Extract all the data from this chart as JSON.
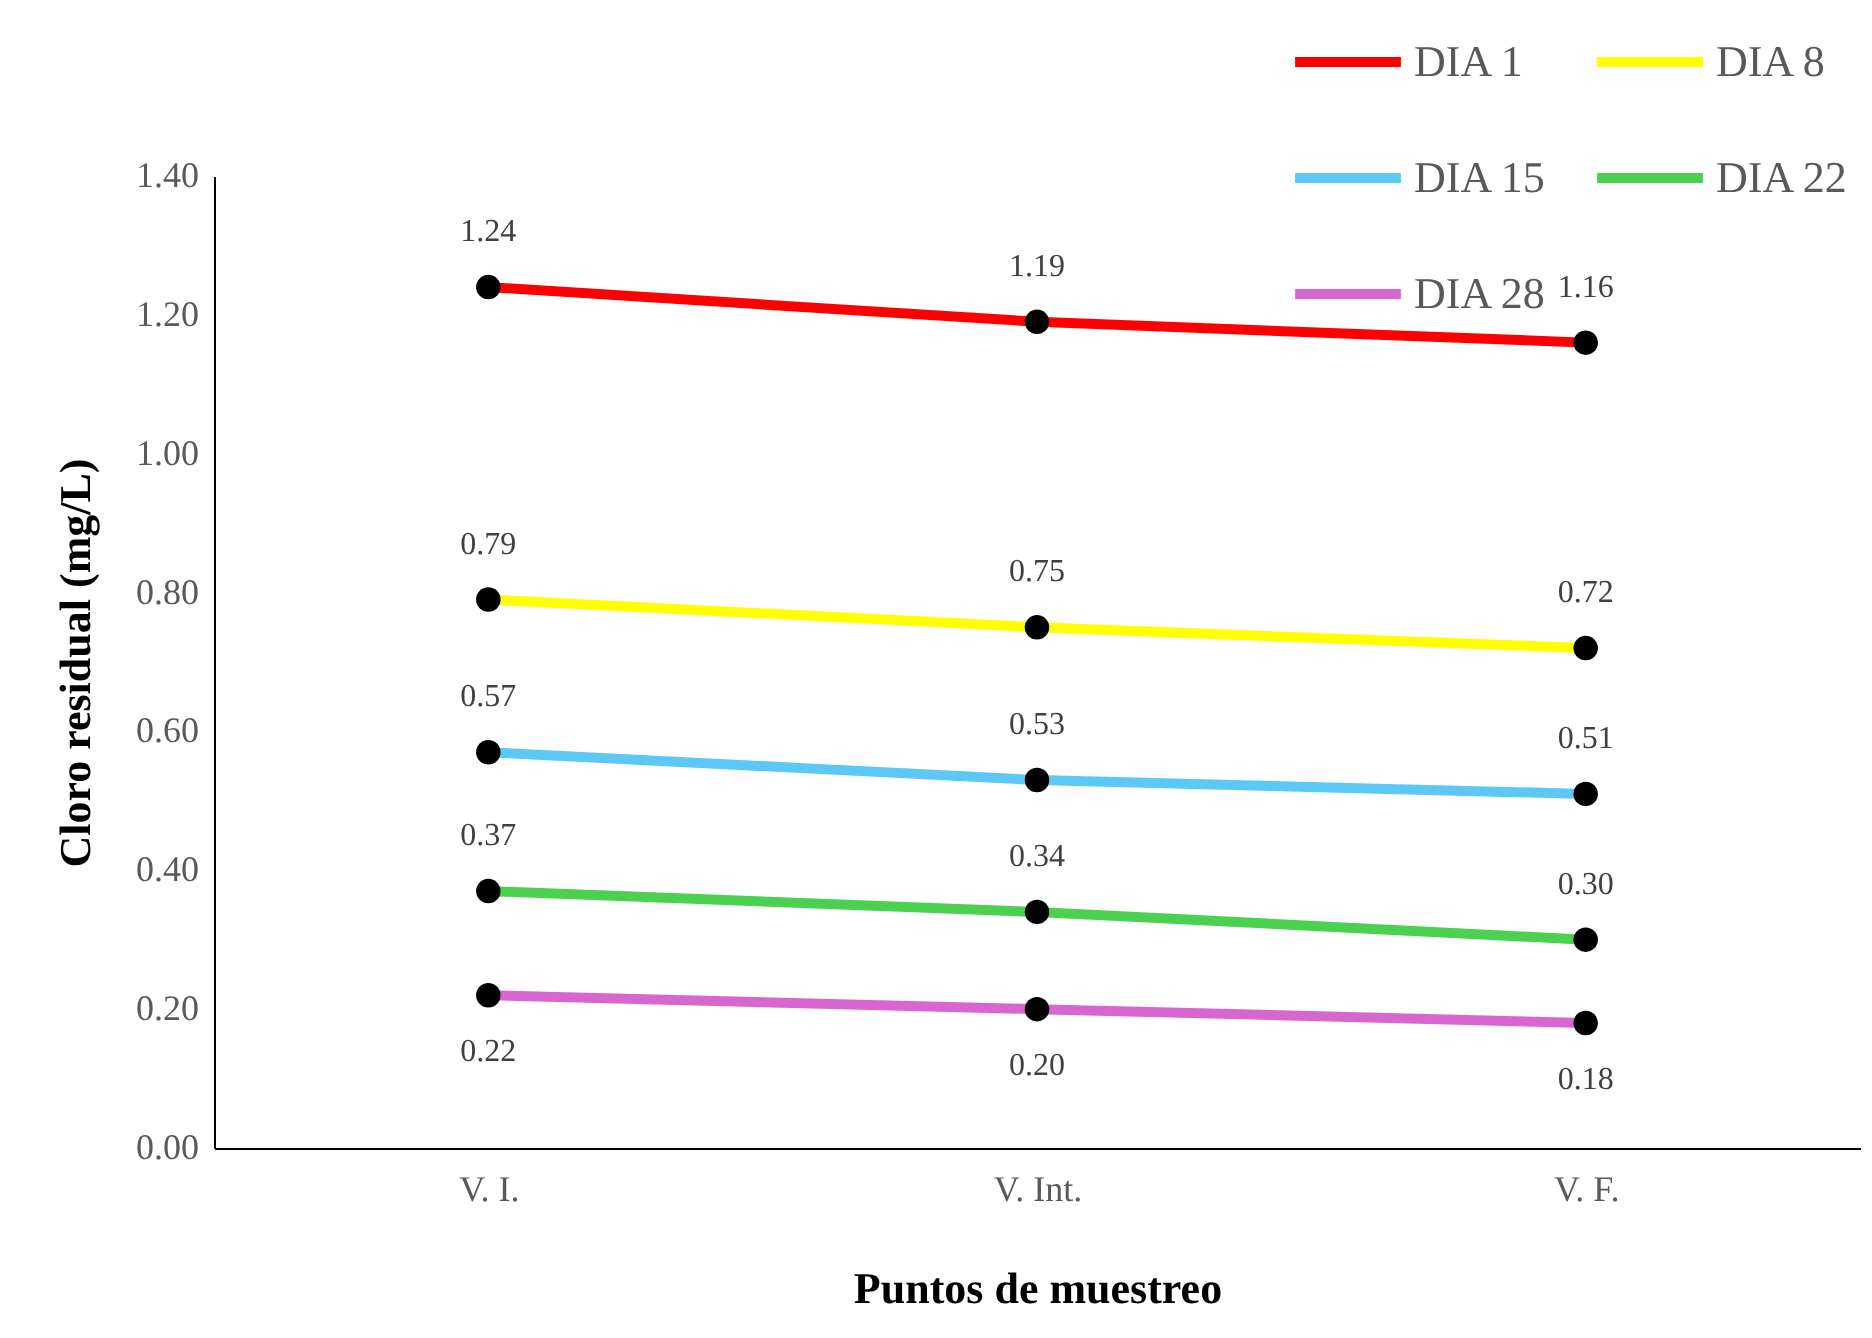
{
  "chart_data": {
    "type": "line",
    "xlabel": "Puntos de muestreo",
    "ylabel": "Cloro residual (mg/L)",
    "categories": [
      "V. I.",
      "V. Int.",
      "V. F."
    ],
    "series": [
      {
        "name": "DIA 1",
        "color": "#ff0000",
        "values": [
          1.24,
          1.19,
          1.16
        ],
        "value_labels": [
          "1.24",
          "1.19",
          "1.16"
        ]
      },
      {
        "name": "DIA 8",
        "color": "#ffff00",
        "values": [
          0.79,
          0.75,
          0.72
        ],
        "value_labels": [
          "0.79",
          "0.75",
          "0.72"
        ]
      },
      {
        "name": "DIA 15",
        "color": "#5bc8f5",
        "values": [
          0.57,
          0.53,
          0.51
        ],
        "value_labels": [
          "0.57",
          "0.53",
          "0.51"
        ]
      },
      {
        "name": "DIA 22",
        "color": "#4cd050",
        "values": [
          0.37,
          0.34,
          0.3
        ],
        "value_labels": [
          "0.37",
          "0.34",
          "0.30"
        ]
      },
      {
        "name": "DIA 28",
        "color": "#d966d0",
        "values": [
          0.22,
          0.2,
          0.18
        ],
        "value_labels": [
          "0.22",
          "0.20",
          "0.18"
        ]
      }
    ],
    "ylim": [
      0,
      1.4
    ],
    "yticks": [
      {
        "value": 0,
        "label": "0.00"
      },
      {
        "value": 0.2,
        "label": "0.20"
      },
      {
        "value": 0.4,
        "label": "0.40"
      },
      {
        "value": 0.6,
        "label": "0.60"
      },
      {
        "value": 0.8,
        "label": "0.80"
      },
      {
        "value": 1.0,
        "label": "1.00"
      },
      {
        "value": 1.2,
        "label": "1.20"
      },
      {
        "value": 1.4,
        "label": "1.40"
      }
    ],
    "grid": false,
    "legend": "top right",
    "marker": "circle",
    "line_style": "solid"
  }
}
